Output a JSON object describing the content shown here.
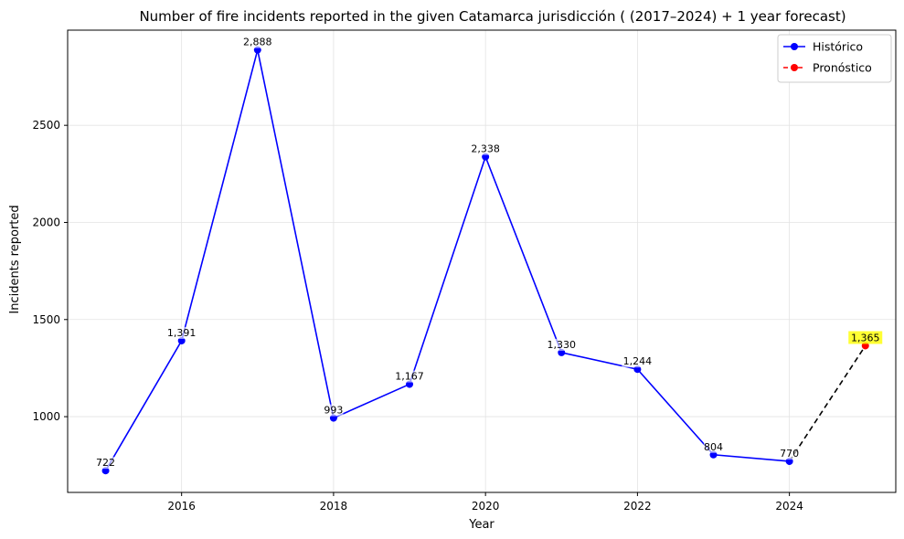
{
  "chart_data": {
    "type": "line",
    "title": "Number of fire incidents reported in the given Catamarca jurisdicción  ( (2017–2024)  + 1 year forecast)",
    "xlabel": "Year",
    "ylabel": "Incidents reported",
    "xlim": [
      2014.5,
      2025.4
    ],
    "ylim": [
      610,
      2990
    ],
    "x_ticks": [
      2016,
      2018,
      2020,
      2022,
      2024
    ],
    "y_ticks": [
      1000,
      1500,
      2000,
      2500
    ],
    "grid": true,
    "legend_position": "top-right",
    "series": [
      {
        "name": "Histórico",
        "color": "#0000ff",
        "style": "solid",
        "x": [
          2015,
          2016,
          2017,
          2018,
          2019,
          2020,
          2021,
          2022,
          2023,
          2024
        ],
        "y": [
          722,
          1391,
          2888,
          993,
          1167,
          2338,
          1330,
          1244,
          804,
          770
        ],
        "labels": [
          "722",
          "1,391",
          "2,888",
          "993",
          "1,167",
          "2,338",
          "1,330",
          "1,244",
          "804",
          "770"
        ]
      },
      {
        "name": "Pronóstico",
        "color": "#ff0000",
        "style": "dashed",
        "x": [
          2025
        ],
        "y": [
          1365
        ],
        "labels": [
          "1,365"
        ],
        "label_highlight": "#ffff00"
      }
    ],
    "forecast_connector": {
      "from": [
        2024,
        770
      ],
      "to": [
        2025,
        1365
      ],
      "color": "#000000",
      "style": "dashed"
    }
  }
}
